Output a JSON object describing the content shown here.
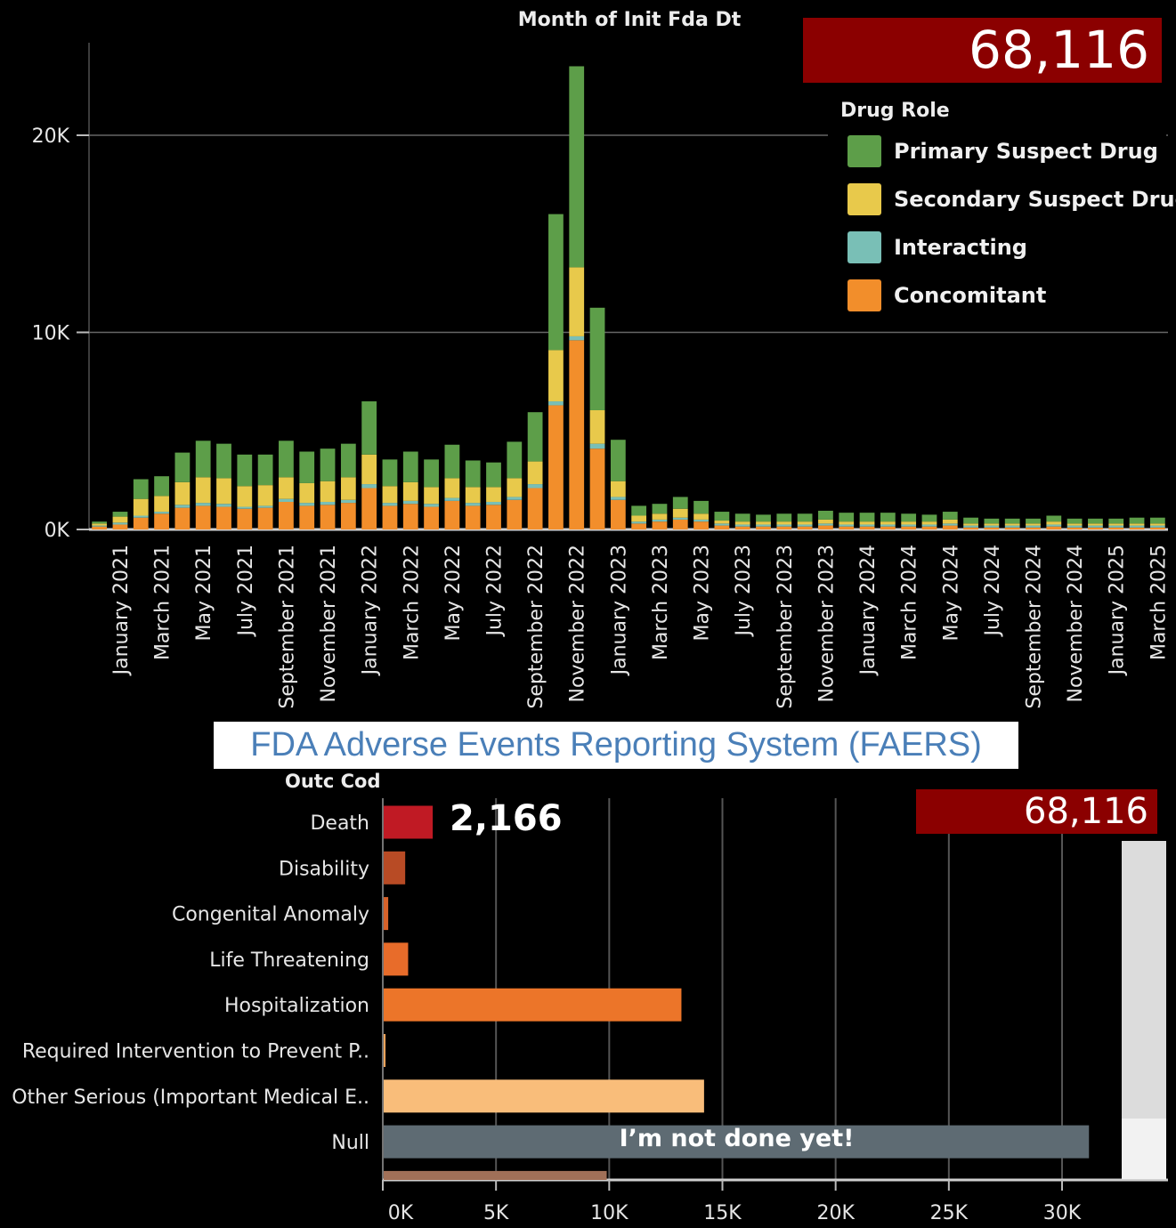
{
  "colors": {
    "primary": "#5d9e49",
    "secondary": "#e8c94b",
    "interacting": "#79bfb6",
    "concomitant": "#f28e2b",
    "total_badge": "#8b0000",
    "null_bar": "#5e6b73"
  },
  "top": {
    "total": "68,116",
    "legend": {
      "title": "Drug Role",
      "items": [
        {
          "label": "Primary Suspect Drug",
          "color": "#5d9e49"
        },
        {
          "label": "Secondary Suspect Drug",
          "color": "#e8c94b"
        },
        {
          "label": "Interacting",
          "color": "#79bfb6"
        },
        {
          "label": "Concomitant",
          "color": "#f28e2b"
        }
      ]
    }
  },
  "banner": "FDA Adverse Events Reporting System (FAERS)",
  "bottom": {
    "total": "68,116",
    "death_label": "2,166",
    "header": "Outc Cod",
    "null_note": "I’m not done yet!"
  },
  "chart_data": [
    {
      "type": "bar",
      "stacked": true,
      "title": "Month of Init Fda Dt",
      "xlabel": "",
      "ylabel": "",
      "ylim": [
        0,
        24000
      ],
      "yticks": [
        "0K",
        "10K",
        "20K"
      ],
      "categories": [
        "December 2020",
        "January 2021",
        "February 2021",
        "March 2021",
        "April 2021",
        "May 2021",
        "June 2021",
        "July 2021",
        "August 2021",
        "September 2021",
        "October 2021",
        "November 2021",
        "December 2021",
        "January 2022",
        "February 2022",
        "March 2022",
        "April 2022",
        "May 2022",
        "June 2022",
        "July 2022",
        "August 2022",
        "September 2022",
        "October 2022",
        "November 2022",
        "December 2022",
        "January 2023",
        "February 2023",
        "March 2023",
        "April 2023",
        "May 2023",
        "June 2023",
        "July 2023",
        "August 2023",
        "September 2023",
        "October 2023",
        "November 2023",
        "December 2023",
        "January 2024",
        "February 2024",
        "March 2024",
        "April 2024",
        "May 2024",
        "June 2024",
        "July 2024",
        "August 2024",
        "September 2024",
        "October 2024",
        "November 2024",
        "December 2024",
        "January 2025",
        "February 2025",
        "March 2025"
      ],
      "tick_labels": [
        "January 2021",
        "March 2021",
        "May 2021",
        "July 2021",
        "September 2021",
        "November 2021",
        "January 2022",
        "March 2022",
        "May 2022",
        "July 2022",
        "September 2022",
        "November 2022",
        "January 2023",
        "March 2023",
        "May 2023",
        "July 2023",
        "September 2023",
        "November 2023",
        "January 2024",
        "March 2024",
        "May 2024",
        "July 2024",
        "September 2024",
        "November 2024",
        "January 2025",
        "March 2025"
      ],
      "series": [
        {
          "name": "Concomitant",
          "values": [
            150,
            250,
            600,
            800,
            1100,
            1200,
            1150,
            1050,
            1100,
            1400,
            1200,
            1250,
            1350,
            2100,
            1200,
            1300,
            1150,
            1450,
            1200,
            1250,
            1500,
            2100,
            6300,
            9600,
            4100,
            1500,
            300,
            400,
            500,
            400,
            200,
            150,
            150,
            150,
            150,
            200,
            150,
            150,
            150,
            150,
            150,
            200,
            100,
            100,
            100,
            100,
            150,
            100,
            100,
            100,
            100,
            100
          ]
        },
        {
          "name": "Interacting",
          "values": [
            50,
            100,
            100,
            100,
            150,
            150,
            150,
            100,
            100,
            150,
            150,
            150,
            150,
            200,
            150,
            150,
            150,
            150,
            150,
            150,
            150,
            200,
            200,
            200,
            250,
            150,
            100,
            100,
            100,
            100,
            100,
            100,
            100,
            100,
            100,
            100,
            100,
            100,
            100,
            100,
            100,
            100,
            100,
            100,
            100,
            100,
            100,
            100,
            100,
            100,
            100,
            100
          ]
        },
        {
          "name": "Secondary Suspect Drug",
          "values": [
            100,
            300,
            850,
            800,
            1150,
            1300,
            1300,
            1050,
            1050,
            1100,
            1000,
            1050,
            1150,
            1500,
            850,
            950,
            850,
            1000,
            800,
            750,
            950,
            1150,
            2600,
            3500,
            1700,
            800,
            300,
            300,
            450,
            300,
            150,
            150,
            150,
            150,
            150,
            200,
            150,
            150,
            150,
            150,
            150,
            200,
            100,
            100,
            100,
            100,
            150,
            100,
            100,
            100,
            100,
            100
          ]
        },
        {
          "name": "Primary Suspect Drug",
          "values": [
            100,
            250,
            1000,
            1000,
            1500,
            1850,
            1750,
            1600,
            1550,
            1850,
            1600,
            1650,
            1700,
            2700,
            1350,
            1550,
            1400,
            1700,
            1350,
            1250,
            1850,
            2500,
            6900,
            10200,
            5200,
            2100,
            500,
            500,
            600,
            650,
            450,
            400,
            350,
            400,
            400,
            450,
            450,
            450,
            450,
            400,
            350,
            400,
            300,
            250,
            250,
            250,
            300,
            250,
            250,
            250,
            300,
            300
          ]
        }
      ]
    },
    {
      "type": "bar",
      "orientation": "horizontal",
      "xlabel": "",
      "ylabel": "Outc Cod",
      "xlim": [
        0,
        34000
      ],
      "xticks": [
        "0K",
        "5K",
        "10K",
        "15K",
        "20K",
        "25K",
        "30K"
      ],
      "categories": [
        "Death",
        "Disability",
        "Congenital Anomaly",
        "Life Threatening",
        "Hospitalization",
        "Required Intervention to Prevent P..",
        "Other Serious (Important Medical E..",
        "Null",
        ""
      ],
      "values": [
        2166,
        950,
        200,
        1080,
        13150,
        80,
        14150,
        31150,
        9850
      ],
      "colors": [
        "#c01a24",
        "#b84b25",
        "#d7622a",
        "#e86c2a",
        "#ec7529",
        "#f5a45a",
        "#f9bd7a",
        "#5e6b73",
        "#a07058"
      ]
    }
  ]
}
